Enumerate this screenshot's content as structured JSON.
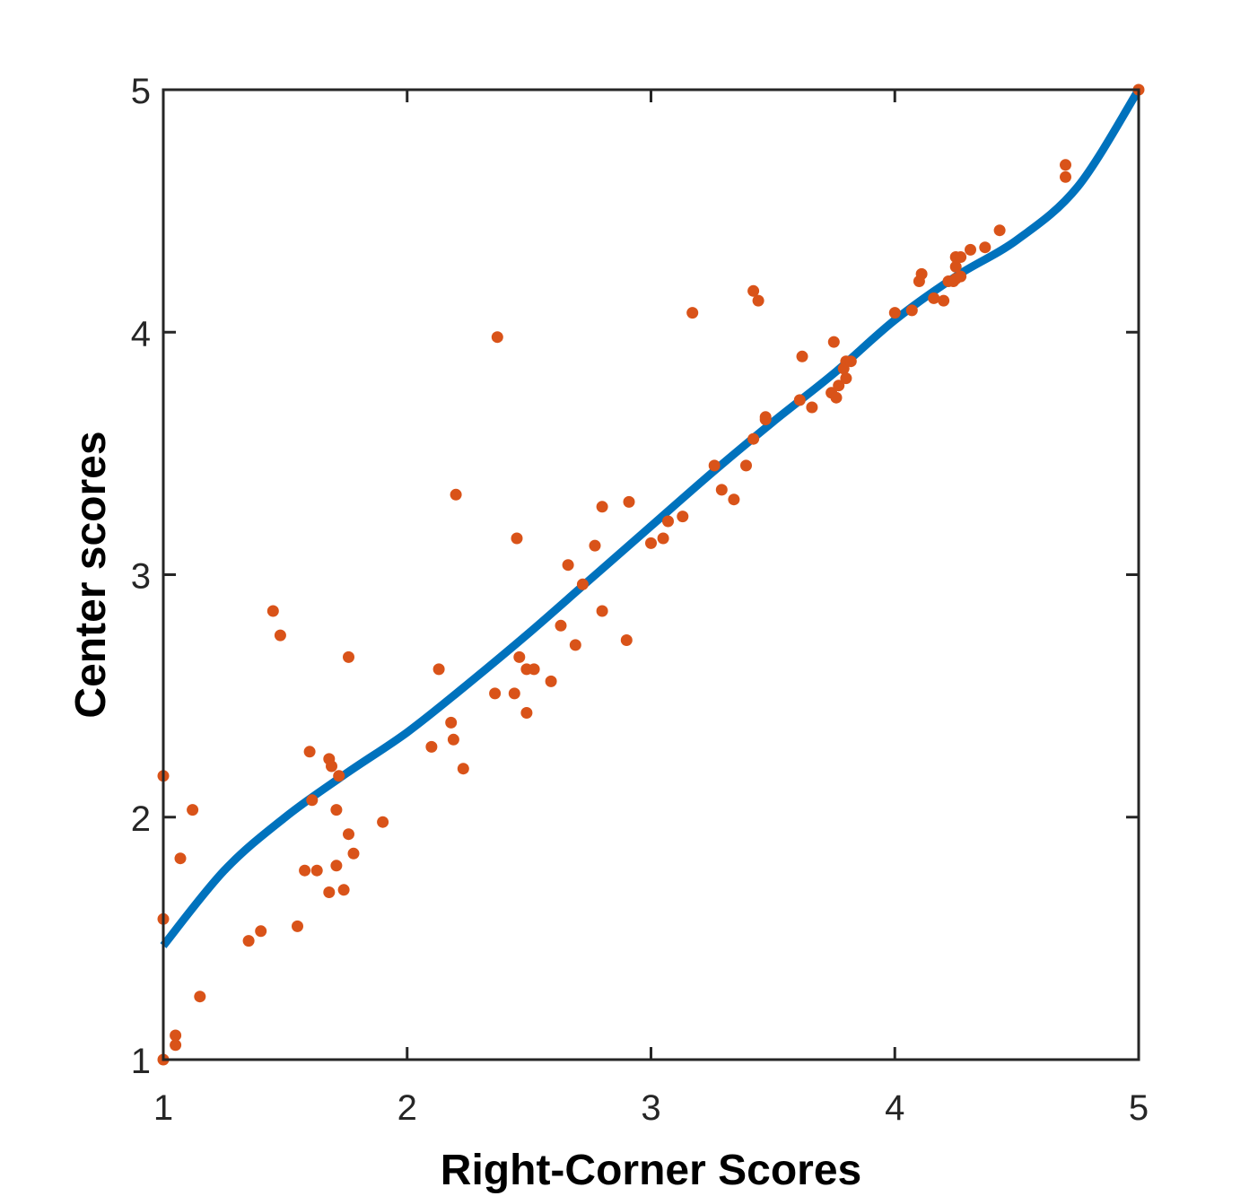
{
  "chart_data": {
    "type": "scatter",
    "xlabel": "Right-Corner Scores",
    "ylabel": "Center scores",
    "xlim": [
      1,
      5
    ],
    "ylim": [
      1,
      5
    ],
    "xticks": [
      "1",
      "2",
      "3",
      "4",
      "5"
    ],
    "yticks": [
      "1",
      "2",
      "3",
      "4",
      "5"
    ],
    "grid": false,
    "colors": {
      "fit_line": "#0072BD",
      "points": "#D95319",
      "axes": "#262626"
    },
    "fit_curve": {
      "x": [
        1.0,
        1.25,
        1.5,
        1.75,
        2.0,
        2.25,
        2.5,
        2.75,
        3.0,
        3.25,
        3.5,
        3.75,
        4.0,
        4.25,
        4.5,
        4.75,
        5.0
      ],
      "y": [
        1.47,
        1.78,
        2.0,
        2.18,
        2.35,
        2.55,
        2.76,
        2.98,
        3.2,
        3.42,
        3.63,
        3.83,
        4.05,
        4.23,
        4.38,
        4.6,
        5.0
      ]
    },
    "series": [
      {
        "values": [
          [
            1.0,
            2.17
          ],
          [
            1.0,
            1.58
          ],
          [
            1.0,
            1.0
          ],
          [
            1.05,
            1.1
          ],
          [
            1.05,
            1.06
          ],
          [
            1.07,
            1.83
          ],
          [
            1.12,
            2.03
          ],
          [
            1.15,
            1.26
          ],
          [
            1.35,
            1.49
          ],
          [
            1.4,
            1.53
          ],
          [
            1.45,
            2.85
          ],
          [
            1.48,
            2.75
          ],
          [
            1.55,
            1.55
          ],
          [
            1.58,
            1.78
          ],
          [
            1.6,
            2.27
          ],
          [
            1.61,
            2.07
          ],
          [
            1.63,
            1.78
          ],
          [
            1.68,
            2.24
          ],
          [
            1.68,
            1.69
          ],
          [
            1.69,
            2.21
          ],
          [
            1.71,
            2.03
          ],
          [
            1.71,
            1.8
          ],
          [
            1.72,
            2.17
          ],
          [
            1.74,
            1.7
          ],
          [
            1.76,
            1.93
          ],
          [
            1.76,
            2.66
          ],
          [
            1.78,
            1.85
          ],
          [
            1.9,
            1.98
          ],
          [
            2.1,
            2.29
          ],
          [
            2.13,
            2.61
          ],
          [
            2.18,
            2.39
          ],
          [
            2.19,
            2.32
          ],
          [
            2.2,
            3.33
          ],
          [
            2.23,
            2.2
          ],
          [
            2.36,
            2.51
          ],
          [
            2.37,
            3.98
          ],
          [
            2.44,
            2.51
          ],
          [
            2.45,
            3.15
          ],
          [
            2.46,
            2.66
          ],
          [
            2.49,
            2.43
          ],
          [
            2.49,
            2.61
          ],
          [
            2.52,
            2.61
          ],
          [
            2.59,
            2.56
          ],
          [
            2.63,
            2.79
          ],
          [
            2.66,
            3.04
          ],
          [
            2.69,
            2.71
          ],
          [
            2.72,
            2.96
          ],
          [
            2.77,
            3.12
          ],
          [
            2.8,
            3.28
          ],
          [
            2.8,
            2.85
          ],
          [
            2.9,
            2.73
          ],
          [
            2.91,
            3.3
          ],
          [
            3.0,
            3.13
          ],
          [
            3.05,
            3.15
          ],
          [
            3.07,
            3.22
          ],
          [
            3.13,
            3.24
          ],
          [
            3.17,
            4.08
          ],
          [
            3.26,
            3.45
          ],
          [
            3.29,
            3.35
          ],
          [
            3.34,
            3.31
          ],
          [
            3.39,
            3.45
          ],
          [
            3.42,
            4.17
          ],
          [
            3.42,
            3.56
          ],
          [
            3.44,
            4.13
          ],
          [
            3.47,
            3.65
          ],
          [
            3.47,
            3.64
          ],
          [
            3.61,
            3.72
          ],
          [
            3.62,
            3.9
          ],
          [
            3.66,
            3.69
          ],
          [
            3.74,
            3.75
          ],
          [
            3.75,
            3.96
          ],
          [
            3.76,
            3.73
          ],
          [
            3.77,
            3.78
          ],
          [
            3.79,
            3.85
          ],
          [
            3.8,
            3.81
          ],
          [
            3.8,
            3.88
          ],
          [
            3.82,
            3.88
          ],
          [
            4.0,
            4.08
          ],
          [
            4.07,
            4.09
          ],
          [
            4.1,
            4.21
          ],
          [
            4.11,
            4.24
          ],
          [
            4.16,
            4.14
          ],
          [
            4.2,
            4.13
          ],
          [
            4.22,
            4.21
          ],
          [
            4.24,
            4.21
          ],
          [
            4.25,
            4.31
          ],
          [
            4.25,
            4.27
          ],
          [
            4.25,
            4.22
          ],
          [
            4.27,
            4.31
          ],
          [
            4.27,
            4.23
          ],
          [
            4.31,
            4.34
          ],
          [
            4.37,
            4.35
          ],
          [
            4.43,
            4.42
          ],
          [
            4.7,
            4.69
          ],
          [
            4.7,
            4.64
          ],
          [
            5.0,
            5.0
          ]
        ]
      }
    ]
  }
}
